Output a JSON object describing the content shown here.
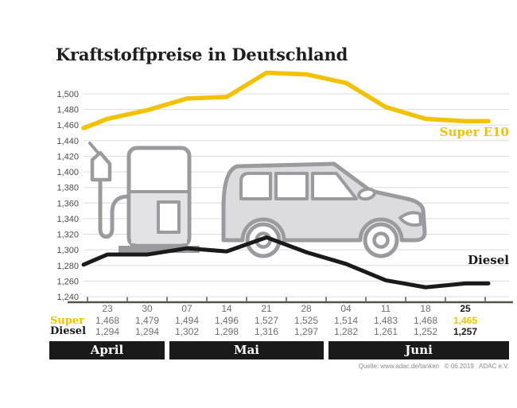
{
  "title": "Kraftstoffpreise in Deutschland",
  "source": "Quelle: www.adac.de/tanken   © 06.2019   ADAC e.V.",
  "colors": {
    "accent_yellow": "#F2C200",
    "ink": "#1A1A1A",
    "gridline": "#DCDCDE",
    "axis": "#55544C",
    "muted_text": "#6E6E6E",
    "icon_stroke": "#9B9B9D",
    "icon_fill": "#E3E3E5",
    "band_text": "#FFFFFF"
  },
  "icons": [
    "fuel-pump-icon",
    "car-icon"
  ],
  "chart_data": {
    "type": "line",
    "title": "Kraftstoffpreise in Deutschland",
    "xlabel": "",
    "ylabel": "",
    "x": [
      "23",
      "30",
      "07",
      "14",
      "21",
      "28",
      "04",
      "11",
      "18",
      "25"
    ],
    "months": [
      {
        "label": "April",
        "cols": 2
      },
      {
        "label": "Mai",
        "cols": 4
      },
      {
        "label": "Juni",
        "cols": 4
      }
    ],
    "series": [
      {
        "name": "Super",
        "end_label": "Super E10",
        "color": "#F2C200",
        "values": [
          1468,
          1479,
          1494,
          1496,
          1527,
          1525,
          1514,
          1483,
          1468,
          1465
        ],
        "edge_start": 1456
      },
      {
        "name": "Diesel",
        "end_label": "Diesel",
        "color": "#1A1A1A",
        "values": [
          1294,
          1294,
          1302,
          1298,
          1316,
          1297,
          1282,
          1261,
          1252,
          1257
        ],
        "edge_start": 1281
      }
    ],
    "ylim": [
      1240,
      1500
    ],
    "ytick_step": 20,
    "grid": true,
    "legend_position": "inline-right"
  },
  "table": {
    "row_labels": {
      "super": "Super",
      "diesel": "Diesel"
    }
  }
}
